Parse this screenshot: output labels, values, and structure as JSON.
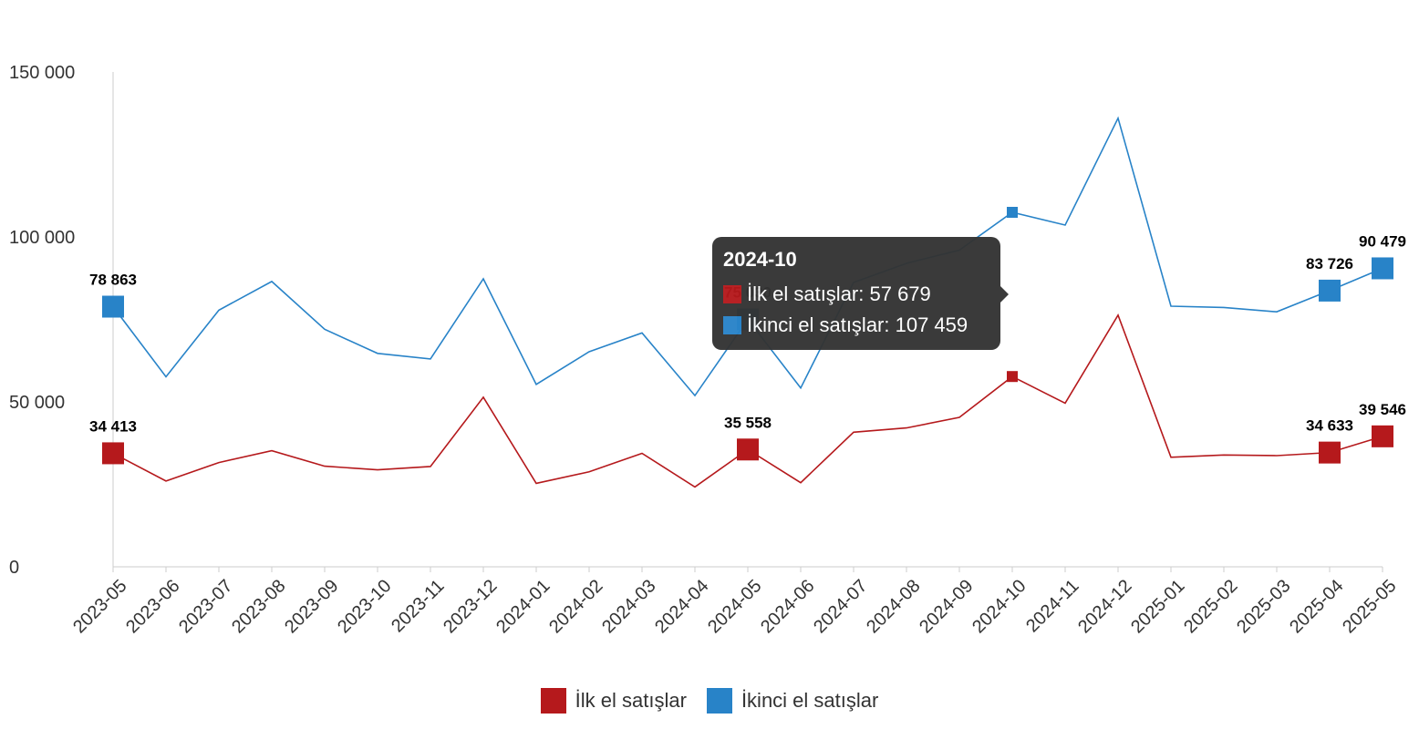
{
  "chart_data": {
    "type": "line",
    "categories": [
      "2023-05",
      "2023-06",
      "2023-07",
      "2023-08",
      "2023-09",
      "2023-10",
      "2023-11",
      "2023-12",
      "2024-01",
      "2024-02",
      "2024-03",
      "2024-04",
      "2024-05",
      "2024-06",
      "2024-07",
      "2024-08",
      "2024-09",
      "2024-10",
      "2024-11",
      "2024-12",
      "2025-01",
      "2025-02",
      "2025-03",
      "2025-04",
      "2025-05"
    ],
    "series": [
      {
        "name": "İlk el satışlar",
        "color": "#b5191c",
        "values": [
          34413,
          26000,
          31600,
          35200,
          30500,
          29400,
          30400,
          51400,
          25300,
          28800,
          34400,
          24200,
          35558,
          25500,
          40800,
          42100,
          45300,
          57679,
          49600,
          76300,
          33200,
          33900,
          33700,
          34633,
          39546
        ]
      },
      {
        "name": "İkinci el satışlar",
        "color": "#2883c8",
        "values": [
          78863,
          57600,
          77800,
          86500,
          72000,
          64700,
          63000,
          87300,
          55300,
          65200,
          70900,
          51900,
          75030,
          54200,
          86200,
          92000,
          96000,
          107459,
          103600,
          136000,
          79000,
          78600,
          77300,
          83726,
          90479
        ]
      }
    ],
    "data_labels": [
      {
        "series": 0,
        "index": 0,
        "text": "34 413"
      },
      {
        "series": 0,
        "index": 12,
        "text": "35 558"
      },
      {
        "series": 0,
        "index": 23,
        "text": "34 633"
      },
      {
        "series": 0,
        "index": 24,
        "text": "39 546"
      },
      {
        "series": 1,
        "index": 0,
        "text": "78 863"
      },
      {
        "series": 1,
        "index": 12,
        "text": "75 030"
      },
      {
        "series": 1,
        "index": 23,
        "text": "83 726"
      },
      {
        "series": 1,
        "index": 24,
        "text": "90 479"
      }
    ],
    "y_ticks": [
      {
        "value": 0,
        "label": "0"
      },
      {
        "value": 50000,
        "label": "50 000"
      },
      {
        "value": 100000,
        "label": "100 000"
      },
      {
        "value": 150000,
        "label": "150 000"
      }
    ],
    "ylim": [
      0,
      150000
    ],
    "grid": false,
    "legend_position": "bottom-center",
    "hovered_index": 17
  },
  "tooltip": {
    "title": "2024-10",
    "rows": [
      {
        "label": "İlk el satışlar: 57 679",
        "color": "#b5191c"
      },
      {
        "label": "İkinci el satışlar: 107 459",
        "color": "#2883c8"
      }
    ]
  }
}
